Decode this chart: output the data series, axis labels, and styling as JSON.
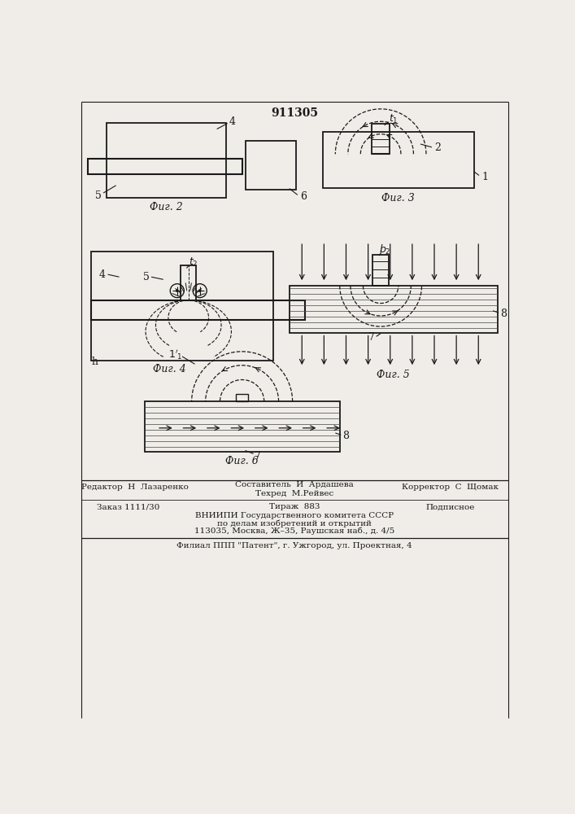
{
  "title": "911305",
  "bg_color": "#f0ede8",
  "line_color": "#1a1a1a",
  "fig2_label": "Фиг. 2",
  "fig3_label": "Фиг. 3",
  "fig4_label": "Фиг. 4",
  "fig5_label": "Фиг. 5",
  "fig6_label": "Фиг. 6",
  "footer_line1_left": "Редактор  Н  Лазаренко",
  "footer_line1_center": "Составитель  И  Ардашева",
  "footer_line1_right": "Корректор  С  Щомак",
  "footer_line2_center": "Техред  М.Рейвес",
  "footer_line3_left": "Заказ 1111/30",
  "footer_line3_center": "Тираж  883",
  "footer_line3_right": "Подписное",
  "footer_line4": "ВНИИПИ Государственного комитета СССР",
  "footer_line5": "по делам изобретений и открытий",
  "footer_line6": "113035, Москва, Ж–35, Раушская наб., д. 4/5",
  "footer_line7": "Филиал ППП \"Патент\", г. Ужгород, ул. Проектная, 4"
}
